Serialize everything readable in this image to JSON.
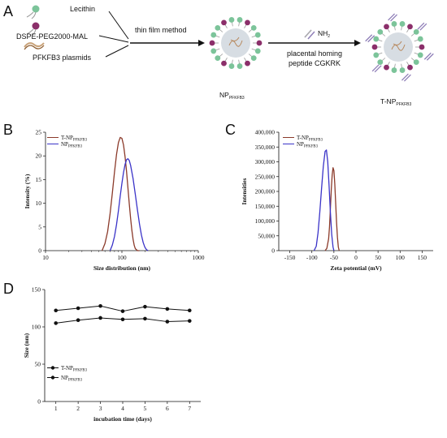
{
  "panel_a": {
    "letter": "A",
    "components": [
      "Lecithin",
      "DSPE-PEG2000-MAL",
      "PFKFB3 plasmids"
    ],
    "method": "thin film method",
    "reagent_group": "NH",
    "reagent_sub": "2",
    "peptide_line1": "placental homing",
    "peptide_line2": "peptide CGKRK",
    "np_label_main": "NP",
    "np_label_sub": "PFKFB3",
    "tnp_label_main": "T-NP",
    "tnp_label_sub": "PFKFB3",
    "colors": {
      "shell_green": "#7cc49a",
      "shell_purple": "#8b2f6a",
      "core": "#d7dde3",
      "arrow": "#111111"
    }
  },
  "chart_data": [
    {
      "panel": "B",
      "type": "line",
      "xlabel": "Size distribution (nm)",
      "ylabel": "Intensity (%)",
      "xscale": "log",
      "xlim": [
        10,
        1000
      ],
      "ylim": [
        0,
        25
      ],
      "xticks": [
        "10",
        "100",
        "1000"
      ],
      "yticks": [
        "0",
        "5",
        "10",
        "15",
        "20",
        "25"
      ],
      "legend_position": "top-left",
      "series": [
        {
          "name_main": "T-NP",
          "name_sub": "PFKFB3",
          "color": "#8b3a2a",
          "x": [
            55,
            60,
            65,
            70,
            75,
            80,
            85,
            90,
            95,
            100,
            105,
            110,
            115,
            120,
            125,
            130,
            135,
            140,
            145,
            150,
            160,
            170
          ],
          "y": [
            0,
            1.5,
            4.0,
            7.8,
            12.2,
            16.6,
            20.3,
            22.8,
            23.9,
            23.7,
            22.3,
            19.8,
            16.7,
            13.2,
            9.8,
            6.8,
            4.3,
            2.4,
            1.1,
            0.4,
            0,
            0
          ]
        },
        {
          "name_main": "NP",
          "name_sub": "PFKFB3",
          "color": "#3a33c8",
          "x": [
            70,
            75,
            80,
            85,
            90,
            95,
            100,
            105,
            110,
            115,
            120,
            125,
            130,
            140,
            150,
            160,
            170,
            180,
            190,
            200,
            210,
            220
          ],
          "y": [
            0,
            1.2,
            3.0,
            5.5,
            8.4,
            11.5,
            14.2,
            16.5,
            18.2,
            19.2,
            19.4,
            19.0,
            18.0,
            15.2,
            11.8,
            8.5,
            5.6,
            3.3,
            1.7,
            0.7,
            0.2,
            0
          ]
        }
      ]
    },
    {
      "panel": "C",
      "type": "line",
      "xlabel": "Zeta potential (mV)",
      "ylabel": "Intensities",
      "xlim": [
        -175,
        175
      ],
      "ylim": [
        0,
        400000
      ],
      "xticks": [
        "-150",
        "-100",
        "-50",
        "0",
        "50",
        "100",
        "150"
      ],
      "yticks": [
        "0",
        "50,000",
        "100,000",
        "150,000",
        "200,000",
        "250,000",
        "300,000",
        "350,000",
        "400,000"
      ],
      "legend_position": "top-left",
      "series": [
        {
          "name_main": "T-NP",
          "name_sub": "PFKFB3",
          "color": "#8b3a2a",
          "x": [
            -70,
            -66,
            -62,
            -60,
            -58,
            -56,
            -54,
            -52,
            -50,
            -48,
            -46,
            -44,
            -42,
            -40,
            -38
          ],
          "y": [
            0,
            8000,
            40000,
            80000,
            140000,
            205000,
            255000,
            280000,
            270000,
            225000,
            160000,
            95000,
            45000,
            12000,
            0
          ]
        },
        {
          "name_main": "NP",
          "name_sub": "PFKFB3",
          "color": "#3a33c8",
          "x": [
            -95,
            -90,
            -86,
            -82,
            -78,
            -74,
            -70,
            -67,
            -64,
            -61,
            -58,
            -55,
            -52,
            -50
          ],
          "y": [
            0,
            15000,
            60000,
            130000,
            210000,
            285000,
            335000,
            340000,
            300000,
            220000,
            130000,
            55000,
            12000,
            0
          ]
        }
      ]
    },
    {
      "panel": "D",
      "type": "line",
      "xlabel": "incubation time (days)",
      "ylabel": "Size (nm)",
      "xlim": [
        0.5,
        7.5
      ],
      "ylim": [
        0,
        150
      ],
      "xticks": [
        "1",
        "2",
        "3",
        "4",
        "5",
        "6",
        "7"
      ],
      "yticks": [
        "0",
        "50",
        "100",
        "150"
      ],
      "legend_position": "lower-left",
      "series": [
        {
          "name_main": "T-NP",
          "name_sub": "PFKFB3",
          "color": "#111111",
          "x": [
            1,
            2,
            3,
            4,
            5,
            6,
            7
          ],
          "y": [
            105,
            109,
            112,
            110,
            111,
            107,
            108
          ]
        },
        {
          "name_main": "NP",
          "name_sub": "PFKFB3",
          "color": "#111111",
          "x": [
            1,
            2,
            3,
            4,
            5,
            6,
            7
          ],
          "y": [
            122,
            125,
            128,
            121,
            127,
            124,
            122
          ]
        }
      ]
    }
  ],
  "letters": {
    "b": "B",
    "c": "C",
    "d": "D"
  }
}
